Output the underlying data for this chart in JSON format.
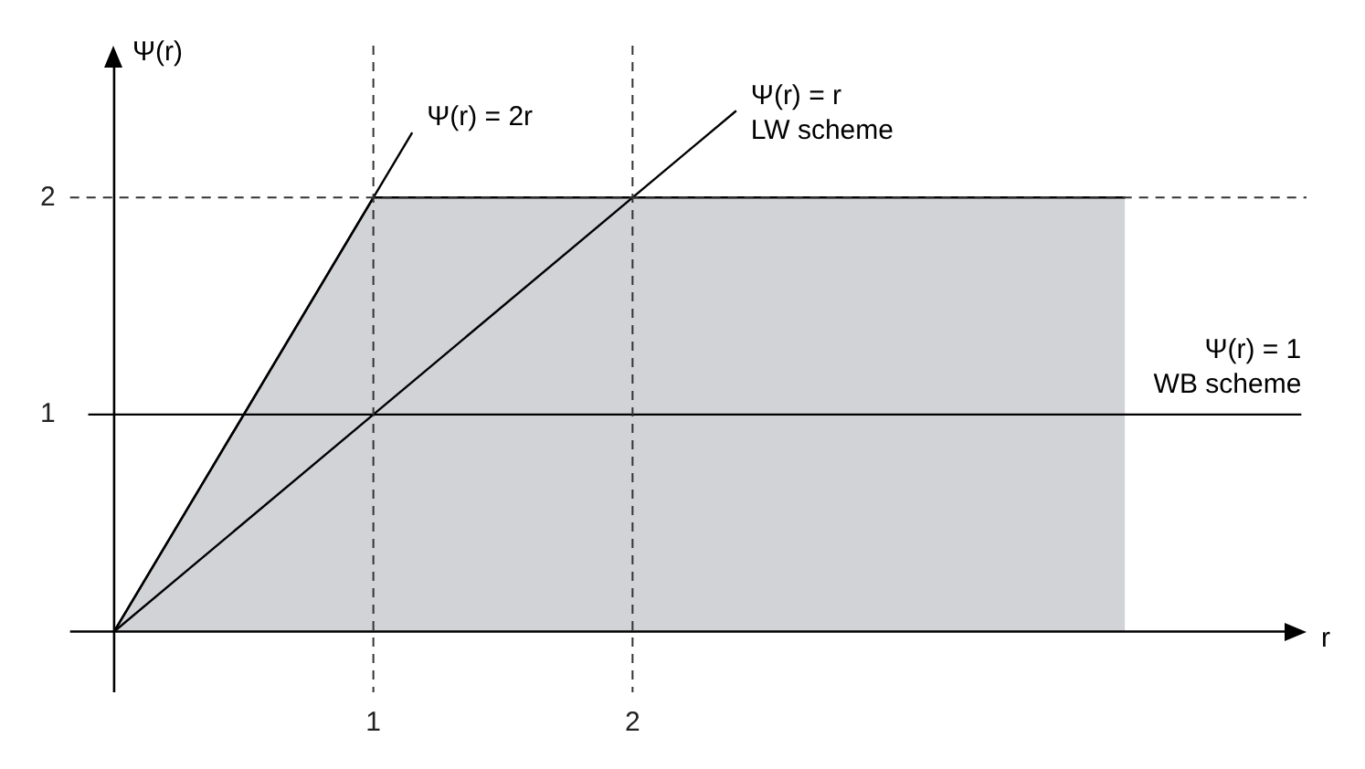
{
  "chart_data": {
    "type": "line",
    "xlabel": "r",
    "ylabel": "Ψ(r)",
    "xlim": [
      -0.17,
      4.6
    ],
    "ylim": [
      -0.28,
      2.7
    ],
    "xticks": [
      1,
      2
    ],
    "yticks": [
      1,
      2
    ],
    "grid": false,
    "legend": false,
    "marker": "none",
    "line_style": "solid",
    "series": [
      {
        "type": "area",
        "color": "#d1d3d6",
        "x": [
          0,
          1,
          3.9
        ],
        "values": [
          0,
          2,
          2
        ]
      },
      {
        "type": "line",
        "name": "Ψ(r) = 2r",
        "color": "#000000",
        "x": [
          0,
          1.15
        ],
        "values": [
          0,
          2.3
        ]
      },
      {
        "type": "line",
        "name": "Ψ(r) = r\nLW scheme",
        "color": "#000000",
        "x": [
          0,
          2.4
        ],
        "values": [
          0,
          2.4
        ]
      },
      {
        "type": "line",
        "name": "Ψ(r) = 1\nWB scheme",
        "color": "#000000",
        "x": [
          -0.1,
          4.58
        ],
        "values": [
          1,
          1
        ]
      }
    ],
    "ref_lines": [
      {
        "axis": "x",
        "value": 1,
        "color": "#333333",
        "line_style": "dashed"
      },
      {
        "axis": "x",
        "value": 2,
        "color": "#333333",
        "line_style": "dashed"
      },
      {
        "axis": "y",
        "value": 2,
        "color": "#333333",
        "line_style": "dashed"
      }
    ]
  }
}
